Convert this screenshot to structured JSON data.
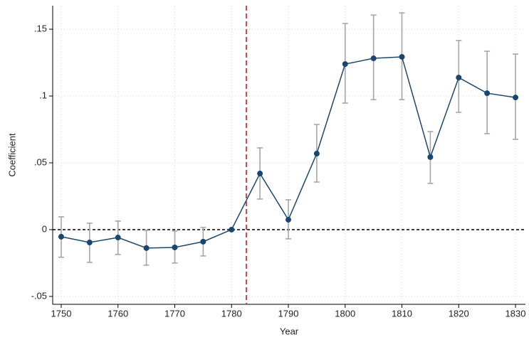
{
  "chart_data": {
    "type": "line",
    "xlabel": "Year",
    "ylabel": "Coefficient",
    "x": [
      1750,
      1755,
      1760,
      1765,
      1770,
      1775,
      1780,
      1785,
      1790,
      1795,
      1800,
      1805,
      1810,
      1815,
      1820,
      1825,
      1830
    ],
    "series": [
      {
        "color": "#1a476f",
        "errorbar_color": "#a6a6a6",
        "values": [
          -0.0053,
          -0.0096,
          -0.0059,
          -0.0138,
          -0.0133,
          -0.009,
          0,
          0.042,
          0.0074,
          0.0569,
          0.1239,
          0.1282,
          0.1293,
          0.0543,
          0.1138,
          0.1021,
          0.0989
        ],
        "ci_low": [
          -0.0207,
          -0.0245,
          -0.0186,
          -0.0266,
          -0.025,
          -0.0197,
          null,
          0.0229,
          -0.0069,
          0.0356,
          0.0947,
          0.0973,
          0.0973,
          0.0346,
          0.0878,
          0.0718,
          0.0676
        ],
        "ci_high": [
          0.0096,
          0.0048,
          0.0064,
          -0.0005,
          -0.001,
          0.0016,
          null,
          0.0612,
          0.0223,
          0.0787,
          0.1543,
          0.1606,
          0.1622,
          0.0734,
          0.1415,
          0.1335,
          0.1314
        ]
      }
    ],
    "xlim": [
      1748.5,
      1831.75
    ],
    "xticks": [
      1750,
      1760,
      1770,
      1780,
      1790,
      1800,
      1810,
      1820,
      1830
    ],
    "ylim": [
      -0.0559,
      0.1676
    ],
    "yticks": [
      {
        "value": -0.05,
        "label": "-.05"
      },
      0,
      {
        "value": 0.05,
        "label": ".05"
      },
      {
        "value": 0.1,
        "label": ".1"
      },
      {
        "value": 0.15,
        "label": ".15"
      }
    ],
    "grid": true,
    "hline": {
      "value": 0,
      "color": "#000000"
    },
    "vline": {
      "value": 1782.6,
      "color": "#e03030"
    }
  }
}
